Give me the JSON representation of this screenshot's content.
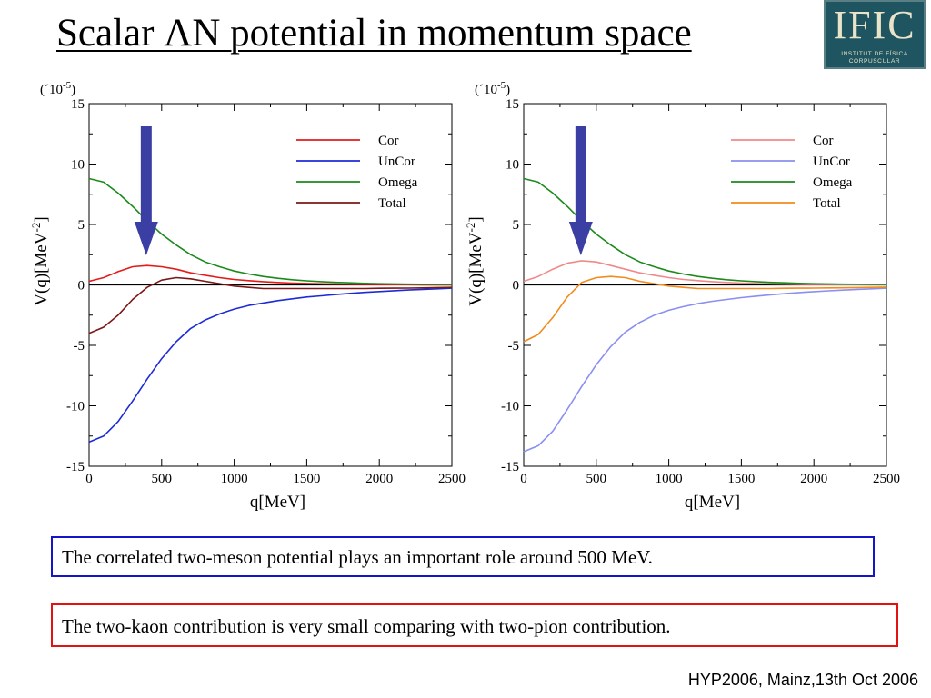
{
  "slide": {
    "title": "Scalar ΛN potential in momentum space",
    "logo": {
      "mark": "IFIC",
      "subtitle": "INSTITUT DE FÍSICA CORPUSCULAR"
    },
    "callouts": {
      "blue": "The correlated two-meson potential plays an important role around 500 MeV.",
      "red": "The two-kaon contribution is very small comparing with two-pion contribution."
    },
    "footer": "HYP2006, Mainz,13th Oct 2006"
  },
  "chart_data": [
    {
      "type": "line",
      "xlabel": "q[MeV]",
      "ylabel": "V(q)[MeV",
      "ylabel_sup": "-2",
      "ylabel_suffix": "]",
      "scale_note": "(´10",
      "scale_note_sup": "-5",
      "scale_note_suffix": ")",
      "xlim": [
        0,
        2500
      ],
      "ylim": [
        -15,
        15
      ],
      "xticks": [
        0,
        500,
        1000,
        1500,
        2000,
        2500
      ],
      "yticks": [
        15,
        10,
        5,
        0,
        -5,
        -10,
        -15
      ],
      "grid": false,
      "legend_position": "top-right",
      "annotation": {
        "type": "arrow",
        "color": "#3b3fa3",
        "x": 400
      },
      "x": [
        0,
        100,
        200,
        300,
        400,
        500,
        600,
        700,
        800,
        900,
        1000,
        1100,
        1200,
        1300,
        1400,
        1500,
        1600,
        1700,
        1800,
        1900,
        2000,
        2100,
        2200,
        2300,
        2400,
        2500
      ],
      "series": [
        {
          "name": "Cor",
          "color": "#e31b1b",
          "values": [
            0.3,
            0.6,
            1.1,
            1.5,
            1.6,
            1.5,
            1.3,
            1.0,
            0.8,
            0.6,
            0.45,
            0.35,
            0.27,
            0.2,
            0.15,
            0.12,
            0.09,
            0.07,
            0.05,
            0.04,
            0.03,
            0.02,
            0.02,
            0.01,
            0.01,
            0.0
          ]
        },
        {
          "name": "UnCor",
          "color": "#1c2bd6",
          "values": [
            -13.0,
            -12.5,
            -11.3,
            -9.6,
            -7.8,
            -6.1,
            -4.7,
            -3.6,
            -2.9,
            -2.4,
            -2.0,
            -1.7,
            -1.5,
            -1.3,
            -1.15,
            -1.0,
            -0.9,
            -0.8,
            -0.7,
            -0.62,
            -0.55,
            -0.48,
            -0.42,
            -0.37,
            -0.32,
            -0.27
          ]
        },
        {
          "name": "Omega",
          "color": "#1b8a1b",
          "values": [
            8.8,
            8.5,
            7.6,
            6.5,
            5.3,
            4.2,
            3.3,
            2.5,
            1.9,
            1.5,
            1.15,
            0.9,
            0.7,
            0.55,
            0.43,
            0.34,
            0.27,
            0.21,
            0.17,
            0.13,
            0.1,
            0.08,
            0.06,
            0.05,
            0.04,
            0.03
          ]
        },
        {
          "name": "Total",
          "color": "#7a1717",
          "values": [
            -4.0,
            -3.5,
            -2.5,
            -1.2,
            -0.2,
            0.4,
            0.6,
            0.5,
            0.3,
            0.1,
            -0.1,
            -0.2,
            -0.3,
            -0.3,
            -0.3,
            -0.3,
            -0.3,
            -0.3,
            -0.3,
            -0.3,
            -0.28,
            -0.27,
            -0.26,
            -0.25,
            -0.22,
            -0.2
          ]
        }
      ]
    },
    {
      "type": "line",
      "xlabel": "q[MeV]",
      "ylabel": "V(q)[MeV",
      "ylabel_sup": "-2",
      "ylabel_suffix": "]",
      "scale_note": "(´10",
      "scale_note_sup": "-5",
      "scale_note_suffix": ")",
      "xlim": [
        0,
        2500
      ],
      "ylim": [
        -15,
        15
      ],
      "xticks": [
        0,
        500,
        1000,
        1500,
        2000,
        2500
      ],
      "yticks": [
        15,
        10,
        5,
        0,
        -5,
        -10,
        -15
      ],
      "grid": false,
      "legend_position": "top-right",
      "annotation": {
        "type": "arrow",
        "color": "#3b3fa3",
        "x": 400
      },
      "x": [
        0,
        100,
        200,
        300,
        400,
        500,
        600,
        700,
        800,
        900,
        1000,
        1100,
        1200,
        1300,
        1400,
        1500,
        1600,
        1700,
        1800,
        1900,
        2000,
        2100,
        2200,
        2300,
        2400,
        2500
      ],
      "series": [
        {
          "name": "Cor",
          "color": "#f08a8a",
          "values": [
            0.3,
            0.7,
            1.3,
            1.8,
            2.0,
            1.9,
            1.6,
            1.3,
            1.0,
            0.8,
            0.6,
            0.45,
            0.35,
            0.27,
            0.2,
            0.15,
            0.12,
            0.09,
            0.07,
            0.05,
            0.04,
            0.03,
            0.02,
            0.02,
            0.01,
            0.0
          ]
        },
        {
          "name": "UnCor",
          "color": "#8a8ff0",
          "values": [
            -13.8,
            -13.3,
            -12.1,
            -10.3,
            -8.4,
            -6.6,
            -5.1,
            -3.9,
            -3.1,
            -2.5,
            -2.1,
            -1.8,
            -1.55,
            -1.35,
            -1.2,
            -1.05,
            -0.93,
            -0.82,
            -0.72,
            -0.63,
            -0.56,
            -0.49,
            -0.43,
            -0.37,
            -0.32,
            -0.27
          ]
        },
        {
          "name": "Omega",
          "color": "#1b8a1b",
          "values": [
            8.8,
            8.5,
            7.6,
            6.5,
            5.3,
            4.2,
            3.3,
            2.5,
            1.9,
            1.5,
            1.15,
            0.9,
            0.7,
            0.55,
            0.43,
            0.34,
            0.27,
            0.21,
            0.17,
            0.13,
            0.1,
            0.08,
            0.06,
            0.05,
            0.04,
            0.03
          ]
        },
        {
          "name": "Total",
          "color": "#f28a1c",
          "values": [
            -4.7,
            -4.1,
            -2.7,
            -1.0,
            0.2,
            0.6,
            0.7,
            0.6,
            0.3,
            0.1,
            -0.1,
            -0.2,
            -0.3,
            -0.3,
            -0.3,
            -0.3,
            -0.3,
            -0.3,
            -0.28,
            -0.27,
            -0.26,
            -0.25,
            -0.24,
            -0.22,
            -0.2,
            -0.18
          ]
        }
      ]
    }
  ]
}
